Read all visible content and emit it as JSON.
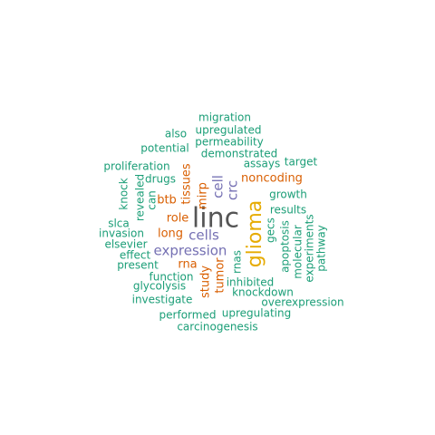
{
  "colors": {
    "green": "#1b9e77",
    "orange": "#d95f02",
    "purple": "#7570b3",
    "gold": "#e6ab02",
    "gray": "#555555"
  },
  "words": [
    {
      "text": "linc",
      "weight": 10,
      "color": "gray"
    },
    {
      "text": "glioma",
      "weight": 8,
      "color": "gold"
    },
    {
      "text": "expression",
      "weight": 6,
      "color": "purple"
    },
    {
      "text": "cells",
      "weight": 6,
      "color": "purple"
    },
    {
      "text": "cell",
      "weight": 6,
      "color": "purple"
    },
    {
      "text": "crc",
      "weight": 5,
      "color": "purple"
    },
    {
      "text": "tissues",
      "weight": 5,
      "color": "orange"
    },
    {
      "text": "mirp",
      "weight": 5,
      "color": "orange"
    },
    {
      "text": "btb",
      "weight": 5,
      "color": "orange"
    },
    {
      "text": "role",
      "weight": 5,
      "color": "orange"
    },
    {
      "text": "long",
      "weight": 5,
      "color": "orange"
    },
    {
      "text": "rna",
      "weight": 5,
      "color": "orange"
    },
    {
      "text": "tumor",
      "weight": 5,
      "color": "orange"
    },
    {
      "text": "study",
      "weight": 5,
      "color": "orange"
    },
    {
      "text": "noncoding",
      "weight": 5,
      "color": "orange"
    },
    {
      "text": "migration",
      "weight": 3,
      "color": "green"
    },
    {
      "text": "also",
      "weight": 3,
      "color": "green"
    },
    {
      "text": "upregulated",
      "weight": 3,
      "color": "green"
    },
    {
      "text": "permeability",
      "weight": 3,
      "color": "green"
    },
    {
      "text": "potential",
      "weight": 3,
      "color": "green"
    },
    {
      "text": "demonstrated",
      "weight": 3,
      "color": "green"
    },
    {
      "text": "assays",
      "weight": 3,
      "color": "green"
    },
    {
      "text": "target",
      "weight": 3,
      "color": "green"
    },
    {
      "text": "proliferation",
      "weight": 3,
      "color": "green"
    },
    {
      "text": "drugs",
      "weight": 3,
      "color": "green"
    },
    {
      "text": "knock",
      "weight": 3,
      "color": "green"
    },
    {
      "text": "revealed",
      "weight": 3,
      "color": "green"
    },
    {
      "text": "can",
      "weight": 3,
      "color": "green"
    },
    {
      "text": "growth",
      "weight": 3,
      "color": "green"
    },
    {
      "text": "results",
      "weight": 3,
      "color": "green"
    },
    {
      "text": "slca",
      "weight": 3,
      "color": "green"
    },
    {
      "text": "invasion",
      "weight": 3,
      "color": "green"
    },
    {
      "text": "elsevier",
      "weight": 3,
      "color": "green"
    },
    {
      "text": "effect",
      "weight": 3,
      "color": "green"
    },
    {
      "text": "present",
      "weight": 3,
      "color": "green"
    },
    {
      "text": "gecs",
      "weight": 3,
      "color": "green"
    },
    {
      "text": "apoptosis",
      "weight": 3,
      "color": "green"
    },
    {
      "text": "molecular",
      "weight": 3,
      "color": "green"
    },
    {
      "text": "experiments",
      "weight": 3,
      "color": "green"
    },
    {
      "text": "pathway",
      "weight": 3,
      "color": "green"
    },
    {
      "text": "rnas",
      "weight": 3,
      "color": "green"
    },
    {
      "text": "function",
      "weight": 3,
      "color": "green"
    },
    {
      "text": "glycolysis",
      "weight": 3,
      "color": "green"
    },
    {
      "text": "inhibited",
      "weight": 3,
      "color": "green"
    },
    {
      "text": "knockdown",
      "weight": 3,
      "color": "green"
    },
    {
      "text": "investigate",
      "weight": 3,
      "color": "green"
    },
    {
      "text": "overexpression",
      "weight": 3,
      "color": "green"
    },
    {
      "text": "performed",
      "weight": 3,
      "color": "green"
    },
    {
      "text": "upregulating",
      "weight": 3,
      "color": "green"
    },
    {
      "text": "carcinogenesis",
      "weight": 3,
      "color": "green"
    }
  ]
}
